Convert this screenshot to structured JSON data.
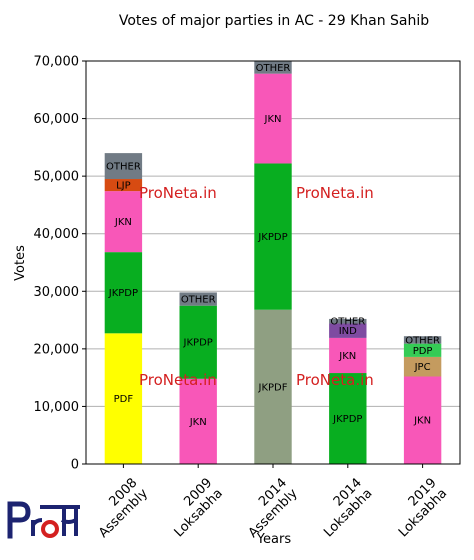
{
  "chart_data": {
    "type": "bar",
    "stacked": true,
    "title": "Votes of major parties in AC - 29 Khan Sahib",
    "xlabel": "Years",
    "ylabel": "Votes",
    "ylim": [
      0,
      70000
    ],
    "yticks": [
      0,
      10000,
      20000,
      30000,
      40000,
      50000,
      60000,
      70000
    ],
    "ytick_labels": [
      "0",
      "10,000",
      "20,000",
      "30,000",
      "40,000",
      "50,000",
      "60,000",
      "70,000"
    ],
    "grid": "horizontal",
    "categories": [
      {
        "line1": "2008",
        "line2": "Assembly"
      },
      {
        "line1": "2009",
        "line2": "Loksabha"
      },
      {
        "line1": "2014",
        "line2": "Assembly"
      },
      {
        "line1": "2014",
        "line2": "Loksabha"
      },
      {
        "line1": "2019",
        "line2": "Loksabha"
      }
    ],
    "bars": [
      [
        {
          "party": "PDF",
          "value": 22700,
          "color": "#ffff00"
        },
        {
          "party": "JKPDP",
          "value": 14100,
          "color": "#08ae20"
        },
        {
          "party": "JKN",
          "value": 10600,
          "color": "#f857b8"
        },
        {
          "party": "LJP",
          "value": 2100,
          "color": "#d74b12"
        },
        {
          "party": "OTHER",
          "value": 4500,
          "color": "#717b85"
        }
      ],
      [
        {
          "party": "JKN",
          "value": 14800,
          "color": "#f857b8"
        },
        {
          "party": "JKPDP",
          "value": 12700,
          "color": "#08ae20"
        },
        {
          "party": "OTHER",
          "value": 2300,
          "color": "#717b85"
        }
      ],
      [
        {
          "party": "JKPDF",
          "value": 26800,
          "color": "#8f9f82"
        },
        {
          "party": "JKPDP",
          "value": 25400,
          "color": "#08ae20"
        },
        {
          "party": "JKN",
          "value": 15600,
          "color": "#f857b8"
        },
        {
          "party": "OTHER",
          "value": 2200,
          "color": "#717b85"
        }
      ],
      [
        {
          "party": "JKPDP",
          "value": 15800,
          "color": "#08ae20"
        },
        {
          "party": "JKN",
          "value": 6100,
          "color": "#f857b8"
        },
        {
          "party": "IND",
          "value": 2500,
          "color": "#7e4ba1"
        },
        {
          "party": "OTHER",
          "value": 800,
          "color": "#717b85"
        }
      ],
      [
        {
          "party": "JKN",
          "value": 15200,
          "color": "#f857b8"
        },
        {
          "party": "JPC",
          "value": 3400,
          "color": "#c49b5f"
        },
        {
          "party": "PDP",
          "value": 2300,
          "color": "#35cb55"
        },
        {
          "party": "OTHER",
          "value": 1300,
          "color": "#717b85"
        }
      ]
    ],
    "watermark": "ProNeta.in"
  },
  "logo": {
    "color": "#1c2370",
    "accent": "#d42020"
  }
}
